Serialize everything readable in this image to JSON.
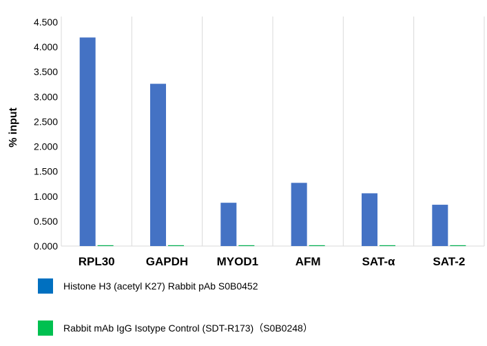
{
  "chart_data": {
    "type": "bar",
    "title": "",
    "xlabel": "",
    "ylabel": "% input",
    "ylim": [
      0,
      4.5
    ],
    "yticks": [
      0,
      0.5,
      1.0,
      1.5,
      2.0,
      2.5,
      3.0,
      3.5,
      4.0,
      4.5
    ],
    "ytick_labels": [
      "0.000",
      "0.500",
      "1.000",
      "1.500",
      "2.000",
      "2.500",
      "3.000",
      "3.500",
      "4.000",
      "4.500"
    ],
    "grid": true,
    "grid_axis": "x-category-dividers",
    "legend_position": "bottom-left",
    "categories": [
      "RPL30",
      "GAPDH",
      "MYOD1",
      "AFM",
      "SAT-α",
      "SAT-2"
    ],
    "series": [
      {
        "name": "Histone H3 (acetyl K27) Rabbit pAb S0B0452",
        "color": "#4472C4",
        "legend_color": "#0070C0",
        "values": [
          4.19,
          3.26,
          0.87,
          1.27,
          1.06,
          0.83
        ]
      },
      {
        "name": "Rabbit mAb IgG Isotype Control (SDT-R173)（S0B0248）",
        "color": "#00B050",
        "legend_color": "#00C050",
        "values": [
          0.005,
          0.005,
          0.005,
          0.006,
          0.005,
          0.005
        ]
      }
    ]
  }
}
